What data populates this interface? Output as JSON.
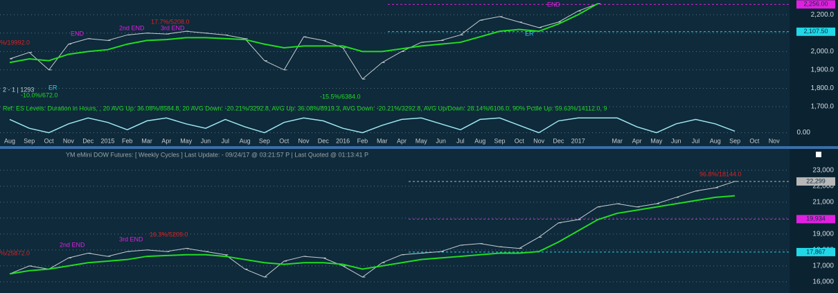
{
  "chart_data": [
    {
      "type": "line",
      "ref_text": "Ref: ES Levels: Duration in Hours, , 20 AVG Up: 36.08%/8584.8, 20 AVG Down: -20.21%/3292.8, AVG Up: 36.08%/8919.3, AVG Down: -20.21%/3292.8, AVG Up/Down: 28.14%/6106.0, 90% Pctile Up: 59.63%/14112.0, 9",
      "categories": [
        "Aug",
        "Sep",
        "Oct",
        "Nov",
        "Dec",
        "2015",
        "Feb",
        "Mar",
        "Apr",
        "May",
        "Jun",
        "Jul",
        "Aug",
        "Sep",
        "Oct",
        "Nov",
        "Dec",
        "2016",
        "Feb",
        "Mar",
        "Apr",
        "May",
        "Jun",
        "Jul",
        "Aug",
        "Sep",
        "Oct",
        "Nov",
        "Dec",
        "2017",
        null,
        "Mar",
        "Apr",
        "May",
        "Jun",
        "Jul",
        "Aug",
        "Sep",
        "Oct",
        "Nov"
      ],
      "series": [
        {
          "color": "#c9ced2",
          "values": [
            1960,
            1995,
            1900,
            2040,
            2070,
            2060,
            2090,
            2100,
            2095,
            2110,
            2100,
            2090,
            2070,
            1950,
            1900,
            2080,
            2060,
            2020,
            1850,
            1940,
            2000,
            2050,
            2060,
            2090,
            2170,
            2190,
            2160,
            2130,
            2160,
            2220,
            2260,
            null,
            null,
            null,
            null,
            null,
            null,
            null,
            null,
            null
          ]
        },
        {
          "color": "#22dd22",
          "values": [
            1940,
            1960,
            1950,
            1985,
            2000,
            2010,
            2040,
            2060,
            2065,
            2075,
            2075,
            2070,
            2065,
            2040,
            2020,
            2030,
            2030,
            2030,
            2000,
            2000,
            2015,
            2030,
            2040,
            2050,
            2080,
            2110,
            2120,
            2110,
            2150,
            2200,
            2260,
            null,
            null,
            null,
            null,
            null,
            null,
            null,
            null,
            null
          ]
        }
      ],
      "ylim": [
        1700,
        2280
      ],
      "yticks": [
        {
          "value": 1700,
          "label": "1,700.0"
        },
        {
          "value": 1800,
          "label": "1,800.0"
        },
        {
          "value": 1900,
          "label": "1,900.0"
        },
        {
          "value": 2000,
          "label": "2,000.0"
        },
        {
          "value": 2100,
          "label": "2,100.0"
        },
        {
          "value": 2200,
          "label": "2,200.0"
        }
      ],
      "price_labels": [
        {
          "value": 2256,
          "label": "2,256.00",
          "color": "#e020e0"
        },
        {
          "value": 2107.5,
          "label": "2,107.50",
          "color": "#20d8e8"
        }
      ],
      "annotations": [
        {
          "text": "%/19992.0",
          "color": "#e02020"
        },
        {
          "text": "-10.0%/672.0",
          "color": "#22dd22"
        },
        {
          "text": "-15.5%/6384.0",
          "color": "#22dd22"
        },
        {
          "text": "17.7%/5208.0",
          "color": "#e02020"
        },
        {
          "text": "END",
          "color": "#e020e0"
        },
        {
          "text": "2nd END",
          "color": "#e020e0"
        },
        {
          "text": "3rd END",
          "color": "#e020e0"
        },
        {
          "text": "END",
          "color": "#e020e0"
        },
        {
          "text": "ER",
          "color": "#20d8e8"
        },
        {
          "text": "ER",
          "color": "#20d8e8"
        },
        {
          "text": "2 - 1 | 1293",
          "color": "#c9ced2"
        }
      ],
      "oscillator": {
        "color": "#9ee8f0",
        "ylim": [
          -0.3,
          1.2
        ],
        "yticks": [
          {
            "value": 0,
            "label": "0.00"
          }
        ],
        "values": [
          0.9,
          0.3,
          0.0,
          0.6,
          1.0,
          0.7,
          0.2,
          0.8,
          1.0,
          0.6,
          0.3,
          0.9,
          0.4,
          0.0,
          0.7,
          1.0,
          0.8,
          0.3,
          0.0,
          0.5,
          0.9,
          1.0,
          0.6,
          0.2,
          0.9,
          1.0,
          0.5,
          0.0,
          0.8,
          1.0,
          1.0,
          1.0,
          0.4,
          0.0,
          0.6,
          0.9,
          0.6,
          0.1,
          null,
          null
        ]
      }
    },
    {
      "type": "line",
      "title": "YM eMini DOW Futures: [ Weekly Cycles ] Last Update:  - 09/24/17 @ 03:21:57 P | Last Quoted @ 01:13:41 P",
      "series": [
        {
          "color": "#c9ced2",
          "values": [
            16500,
            17000,
            16800,
            17500,
            17800,
            17600,
            17900,
            18000,
            17900,
            18100,
            17900,
            17700,
            16800,
            16300,
            17300,
            17600,
            17500,
            17000,
            16300,
            17200,
            17700,
            17800,
            17900,
            18300,
            18400,
            18200,
            18100,
            18800,
            19700,
            19900,
            20700,
            20900,
            20700,
            20900,
            21300,
            21700,
            21900,
            22299,
            null,
            null
          ]
        },
        {
          "color": "#22dd22",
          "values": [
            16500,
            16700,
            16800,
            17000,
            17200,
            17300,
            17400,
            17600,
            17650,
            17700,
            17700,
            17600,
            17400,
            17200,
            17100,
            17200,
            17200,
            17100,
            16800,
            17000,
            17200,
            17400,
            17500,
            17600,
            17700,
            17800,
            17800,
            17900,
            18500,
            19200,
            19900,
            20300,
            20500,
            20700,
            20900,
            21100,
            21300,
            21400,
            null,
            null
          ]
        }
      ],
      "ylim": [
        15300,
        23600
      ],
      "yticks": [
        {
          "value": 16000,
          "label": "16,000"
        },
        {
          "value": 17000,
          "label": "17,000"
        },
        {
          "value": 18000,
          "label": "18,000"
        },
        {
          "value": 19000,
          "label": "19,000"
        },
        {
          "value": 20000,
          "label": "20,000"
        },
        {
          "value": 21000,
          "label": "21,000"
        },
        {
          "value": 22000,
          "label": "22,000"
        },
        {
          "value": 23000,
          "label": "23,000"
        }
      ],
      "price_labels": [
        {
          "value": 22299,
          "label": "22,299",
          "color": "#b8b8b8"
        },
        {
          "value": 19934,
          "label": "19,934",
          "color": "#e020e0"
        },
        {
          "value": 17867,
          "label": "17,867",
          "color": "#20d8e8"
        }
      ],
      "annotations": [
        {
          "text": "96.8%/18144.0",
          "color": "#e02020"
        },
        {
          "text": "16.3%/5209.0",
          "color": "#e02020"
        },
        {
          "text": "2nd END",
          "color": "#e020e0"
        },
        {
          "text": "3rd END",
          "color": "#e020e0"
        },
        {
          "text": "%/25872.0",
          "color": "#e02020"
        }
      ]
    }
  ]
}
